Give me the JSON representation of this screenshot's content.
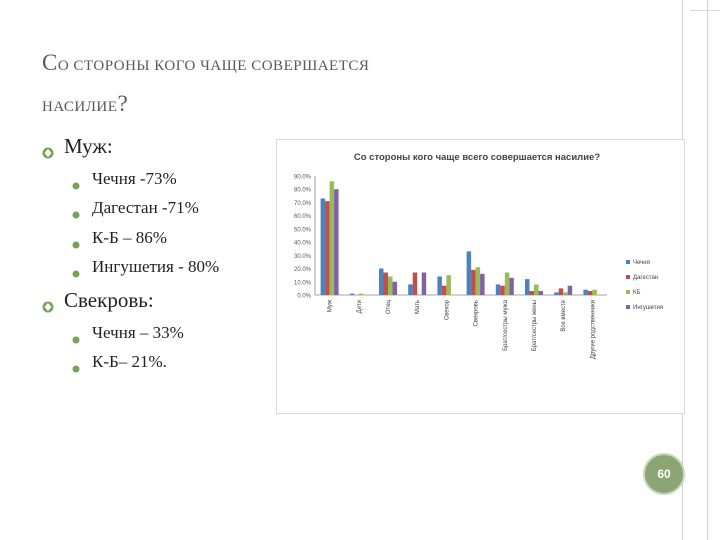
{
  "slide": {
    "title_line1_cap": "С",
    "title_line1_rest": "О СТОРОНЫ КОГО ЧАЩЕ СОВЕРШАЕТСЯ",
    "title_line2_rest": "НАСИЛИЕ",
    "title_line2_q": "?",
    "page_number": "60"
  },
  "list": [
    {
      "label": "Муж:",
      "items": [
        "Чечня -73%",
        "Дагестан -71%",
        "К-Б – 86%",
        "Ингушетия - 80%"
      ]
    },
    {
      "label": "Свекровь:",
      "items": [
        "Чечня – 33%",
        "К-Б– 21%."
      ]
    }
  ],
  "colors": {
    "chechnya": "#4f81bd",
    "dagestan": "#c0504d",
    "kb": "#9bbb59",
    "ingushetia": "#8064a2",
    "accent": "#8ba575"
  },
  "icons": {
    "level1": "diamond-bullet-icon",
    "level2": "square-bullet-icon"
  },
  "chart_data": {
    "type": "bar",
    "title": "Со стороны кого чаще всего совершается насилие?",
    "categories": [
      "Муж",
      "Дети",
      "Отец",
      "Мать",
      "Свекор",
      "Свекровь",
      "Брат/сестры мужа",
      "Брат/сестры жены",
      "Все вместе",
      "Другие родственники"
    ],
    "series": [
      {
        "name": "Чечня",
        "values": [
          73,
          1,
          20,
          8,
          14,
          33,
          8,
          12,
          2,
          4
        ]
      },
      {
        "name": "Дагестан",
        "values": [
          71,
          0,
          17,
          17,
          7,
          19,
          7,
          3,
          5,
          3
        ]
      },
      {
        "name": "КБ",
        "values": [
          86,
          1,
          14,
          0,
          15,
          21,
          17,
          8,
          2,
          4
        ]
      },
      {
        "name": "Ингушетия",
        "values": [
          80,
          0,
          10,
          17,
          0,
          16,
          13,
          3,
          7,
          0
        ]
      }
    ],
    "yticks": [
      "90.0%",
      "80.0%",
      "70.0%",
      "60.0%",
      "50.0%",
      "40.0%",
      "30.0%",
      "20.0%",
      "10.0%",
      "0.0%"
    ],
    "ylim": [
      0,
      90
    ],
    "legend_position": "right",
    "grid": false
  }
}
